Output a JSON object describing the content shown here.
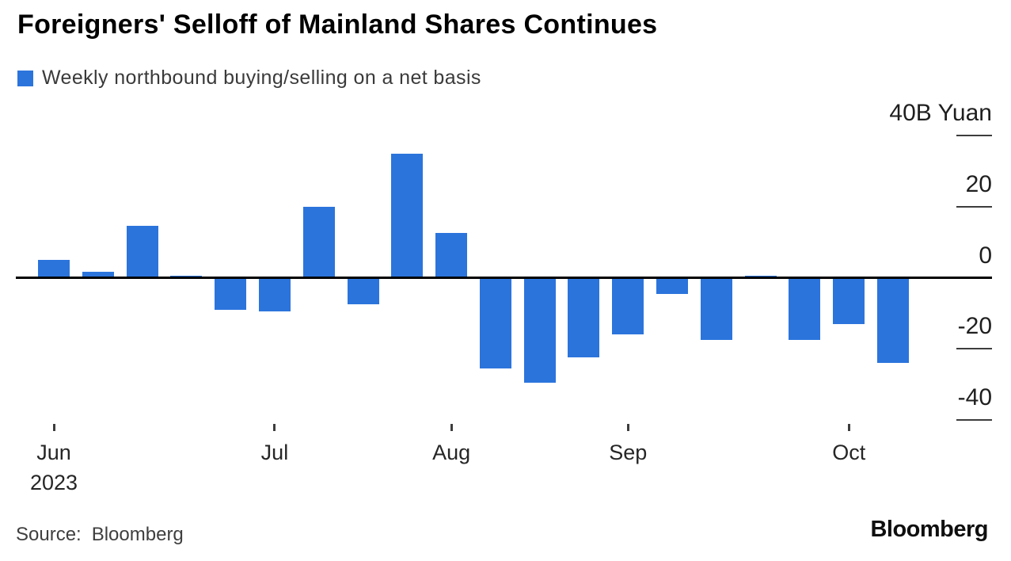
{
  "chart_data": {
    "type": "bar",
    "title": "Foreigners' Selloff of Mainland Shares Continues",
    "series_name": "Weekly northbound buying/selling on a net basis",
    "unit": "B Yuan",
    "bar_color": "#2b74dc",
    "grid": false,
    "legend_position": "top-left",
    "values": [
      5,
      1.7,
      14.5,
      0.5,
      -9,
      -9.5,
      20,
      -7.5,
      35,
      12.5,
      -25.5,
      -29.5,
      -22.5,
      -16,
      -4.5,
      -17.5,
      0.5,
      -17.5,
      -13,
      -24
    ],
    "x_ticks": [
      {
        "bar_index": 0,
        "label": "Jun",
        "sublabel": "2023"
      },
      {
        "bar_index": 5,
        "label": "Jul"
      },
      {
        "bar_index": 9,
        "label": "Aug"
      },
      {
        "bar_index": 13,
        "label": "Sep"
      },
      {
        "bar_index": 18,
        "label": "Oct"
      }
    ],
    "y_axis": {
      "side": "right",
      "ylim": [
        -48,
        45
      ],
      "ticks": [
        {
          "value": 40,
          "label": "40B Yuan"
        },
        {
          "value": 20,
          "label": "20"
        },
        {
          "value": 0,
          "label": "0"
        },
        {
          "value": -20,
          "label": "-20"
        },
        {
          "value": -40,
          "label": "-40"
        }
      ]
    }
  },
  "footer": {
    "source_label": "Source:",
    "source_value": "Bloomberg",
    "logo_text": "Bloomberg"
  },
  "colors": {
    "bar": "#2b74dc",
    "axis_line": "#000000",
    "tick": "#3d3d3d",
    "title_text": "#000000",
    "gray_text": "#3a3a3a",
    "background": "#ffffff"
  }
}
